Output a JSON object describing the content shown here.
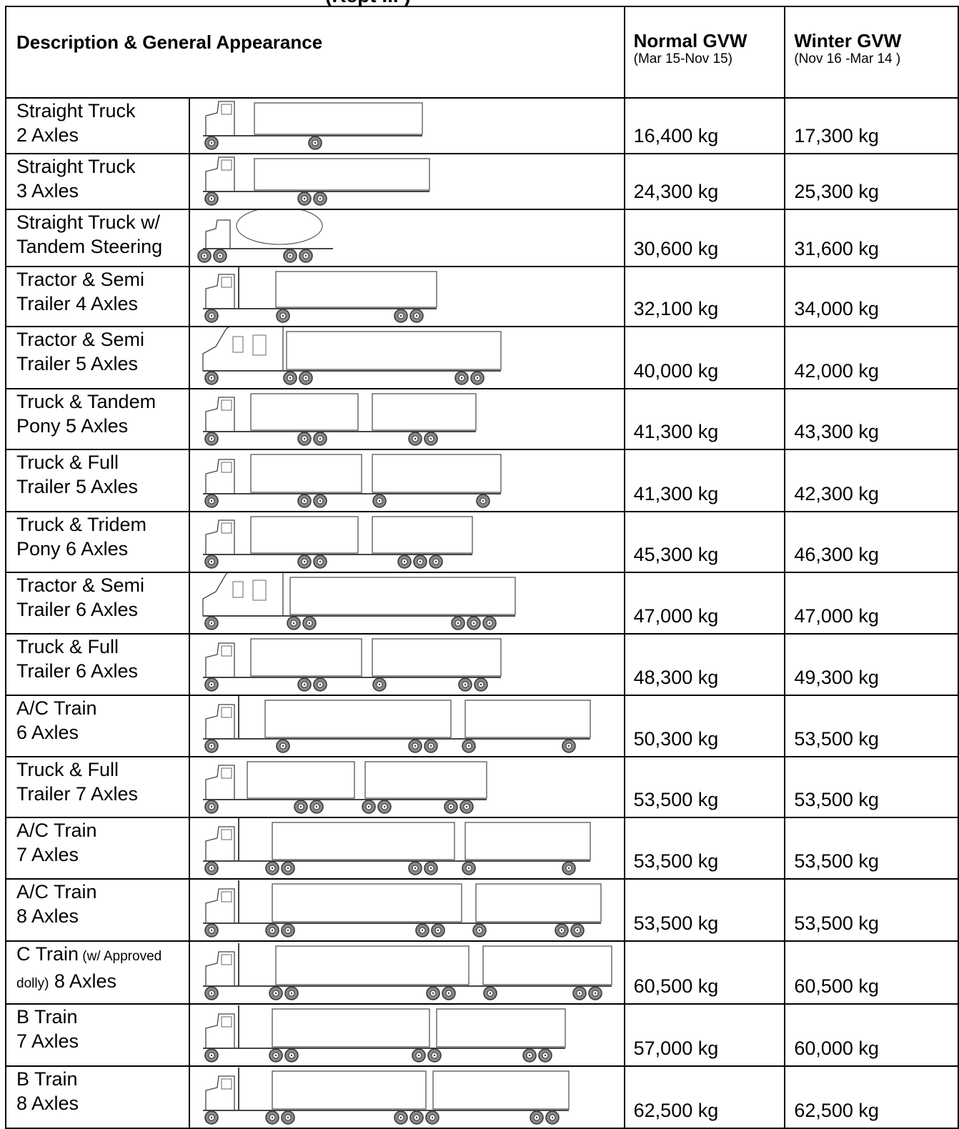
{
  "page_title_fragment": "(Kept ... )",
  "header": {
    "description": "Description & General Appearance",
    "normal": "Normal GVW",
    "normal_period": "(Mar 15-Nov 15)",
    "winter": "Winter GVW",
    "winter_period": "(Nov 16 -Mar 14 )"
  },
  "rows": [
    {
      "line1": "Straight Truck",
      "line2": "2 Axles",
      "normal": "16,400 kg",
      "winter": "17,300 kg",
      "icon": "straight-truck-2-axles-icon"
    },
    {
      "line1": "Straight Truck",
      "line2": "3 Axles",
      "normal": "24,300 kg",
      "winter": "25,300 kg",
      "icon": "straight-truck-3-axles-icon"
    },
    {
      "line1": "Straight Truck w/",
      "line2": "Tandem Steering",
      "normal": "30,600 kg",
      "winter": "31,600 kg",
      "icon": "mixer-truck-icon"
    },
    {
      "line1": "Tractor & Semi",
      "line2": "Trailer 4 Axles",
      "normal": "32,100 kg",
      "winter": "34,000 kg",
      "icon": "tractor-semi-4-axles-icon"
    },
    {
      "line1": "Tractor & Semi",
      "line2": "Trailer 5 Axles",
      "normal": "40,000 kg",
      "winter": "42,000 kg",
      "icon": "tractor-semi-5-axles-icon"
    },
    {
      "line1": "Truck & Tandem",
      "line2": "Pony 5 Axles",
      "normal": "41,300 kg",
      "winter": "43,300 kg",
      "icon": "truck-tandem-pony-icon"
    },
    {
      "line1": "Truck & Full",
      "line2": "Trailer 5 Axles",
      "normal": "41,300 kg",
      "winter": "42,300 kg",
      "icon": "truck-full-trailer-5-icon"
    },
    {
      "line1": "Truck & Tridem",
      "line2": "Pony 6 Axles",
      "normal": "45,300 kg",
      "winter": "46,300 kg",
      "icon": "truck-tridem-pony-icon"
    },
    {
      "line1": "Tractor & Semi",
      "line2": "Trailer 6 Axles",
      "normal": "47,000 kg",
      "winter": "47,000 kg",
      "icon": "tractor-semi-6-axles-icon"
    },
    {
      "line1": "Truck & Full",
      "line2": "Trailer 6 Axles",
      "normal": "48,300 kg",
      "winter": "49,300 kg",
      "icon": "truck-full-trailer-6-icon"
    },
    {
      "line1": "A/C Train",
      "line2": "6 Axles",
      "normal": "50,300 kg",
      "winter": "53,500 kg",
      "icon": "ac-train-6-axles-icon"
    },
    {
      "line1": "Truck & Full",
      "line2": "Trailer 7 Axles",
      "normal": "53,500 kg",
      "winter": "53,500 kg",
      "icon": "truck-full-trailer-7-icon"
    },
    {
      "line1": "A/C Train",
      "line2": "7 Axles",
      "normal": "53,500 kg",
      "winter": "53,500 kg",
      "icon": "ac-train-7-axles-icon"
    },
    {
      "line1": "A/C Train",
      "line2": "8 Axles",
      "normal": "53,500 kg",
      "winter": "53,500 kg",
      "icon": "ac-train-8-axles-icon"
    },
    {
      "line1": "C Train",
      "line1_small": " (w/ Approved",
      "line2_small": "dolly)",
      "line2": " 8 Axles",
      "normal": "60,500 kg",
      "winter": "60,500 kg",
      "icon": "c-train-8-axles-icon"
    },
    {
      "line1": "B Train",
      "line2": "7 Axles",
      "normal": "57,000 kg",
      "winter": "60,000 kg",
      "icon": "b-train-7-axles-icon"
    },
    {
      "line1": "B Train",
      "line2": "8 Axles",
      "normal": "62,500 kg",
      "winter": "62,500 kg",
      "icon": "b-train-8-axles-icon"
    }
  ]
}
